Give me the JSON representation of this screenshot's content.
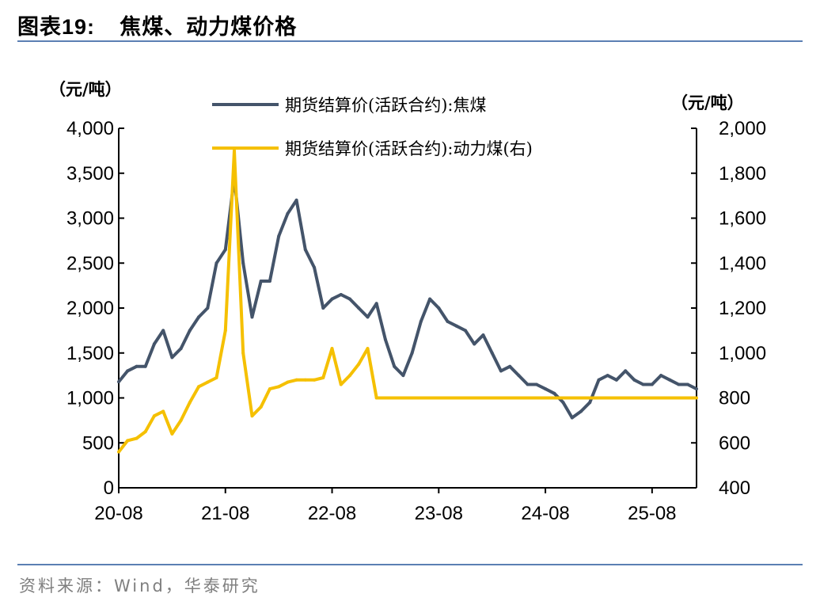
{
  "header": {
    "prefix": "图表",
    "number": "19:",
    "title": "焦煤、动力煤价格"
  },
  "source": "资料来源：Wind，华泰研究",
  "colors": {
    "coking": "#44546a",
    "thermal": "#f5c000",
    "rule": "#5b7fb3"
  },
  "chart_data": {
    "type": "line",
    "left_unit": "（元/吨）",
    "right_unit": "（元/吨）",
    "x_ticks": [
      "20-08",
      "21-08",
      "22-08",
      "23-08",
      "24-08",
      "25-08"
    ],
    "xlim": [
      "2020-08",
      "2026-01"
    ],
    "left_ylim": [
      0,
      4000
    ],
    "left_yticks": [
      "0",
      "500",
      "1,000",
      "1,500",
      "2,000",
      "2,500",
      "3,000",
      "3,500",
      "4,000"
    ],
    "right_ylim": [
      400,
      2000
    ],
    "right_yticks": [
      "400",
      "600",
      "800",
      "1,000",
      "1,200",
      "1,400",
      "1,600",
      "1,800",
      "2,000"
    ],
    "legend_position": "top",
    "series": [
      {
        "name": "期货结算价(活跃合约):焦煤",
        "axis": "left",
        "x": [
          "2020-08",
          "2020-09",
          "2020-10",
          "2020-11",
          "2020-12",
          "2021-01",
          "2021-02",
          "2021-03",
          "2021-04",
          "2021-05",
          "2021-06",
          "2021-07",
          "2021-08",
          "2021-09",
          "2021-10",
          "2021-11",
          "2021-12",
          "2022-01",
          "2022-02",
          "2022-03",
          "2022-04",
          "2022-05",
          "2022-06",
          "2022-07",
          "2022-08",
          "2022-09",
          "2022-10",
          "2022-11",
          "2022-12",
          "2023-01",
          "2023-02",
          "2023-03",
          "2023-04",
          "2023-05",
          "2023-06",
          "2023-07",
          "2023-08",
          "2023-09",
          "2023-10",
          "2023-11",
          "2023-12",
          "2024-01",
          "2024-02",
          "2024-03",
          "2024-04",
          "2024-05",
          "2024-06",
          "2024-07",
          "2024-08",
          "2024-09",
          "2024-10",
          "2024-11",
          "2024-12",
          "2025-01",
          "2025-02",
          "2025-03",
          "2025-04",
          "2025-05",
          "2025-06",
          "2025-07",
          "2025-08",
          "2025-09",
          "2025-10",
          "2025-11",
          "2025-12",
          "2026-01"
        ],
        "values": [
          1180,
          1300,
          1350,
          1350,
          1600,
          1750,
          1450,
          1550,
          1750,
          1900,
          2000,
          2500,
          2650,
          3450,
          2500,
          1900,
          2300,
          2300,
          2800,
          3050,
          3200,
          2650,
          2450,
          2000,
          2100,
          2150,
          2100,
          2000,
          1900,
          2050,
          1650,
          1350,
          1250,
          1500,
          1850,
          2100,
          2000,
          1850,
          1800,
          1750,
          1600,
          1700,
          1500,
          1300,
          1350,
          1250,
          1150,
          1150,
          1100,
          1050,
          950,
          780,
          850,
          950,
          1200,
          1250,
          1200,
          1300,
          1200,
          1150,
          1150,
          1250,
          1200,
          1150,
          1150,
          1100
        ]
      },
      {
        "name": "期货结算价(活跃合约):动力煤(右)",
        "axis": "right",
        "x": [
          "2020-08",
          "2020-09",
          "2020-10",
          "2020-11",
          "2020-12",
          "2021-01",
          "2021-02",
          "2021-03",
          "2021-04",
          "2021-05",
          "2021-06",
          "2021-07",
          "2021-08",
          "2021-09",
          "2021-10",
          "2021-11",
          "2021-12",
          "2022-01",
          "2022-02",
          "2022-03",
          "2022-04",
          "2022-05",
          "2022-06",
          "2022-07",
          "2022-08",
          "2022-09",
          "2022-10",
          "2022-11",
          "2022-12",
          "2023-01",
          "2023-02",
          "2023-03",
          "2026-01"
        ],
        "values": [
          560,
          610,
          620,
          650,
          720,
          740,
          640,
          700,
          780,
          850,
          870,
          890,
          1100,
          1900,
          1000,
          720,
          760,
          840,
          850,
          870,
          880,
          880,
          880,
          890,
          1020,
          860,
          900,
          950,
          1020,
          800,
          800,
          800,
          800
        ]
      }
    ]
  }
}
